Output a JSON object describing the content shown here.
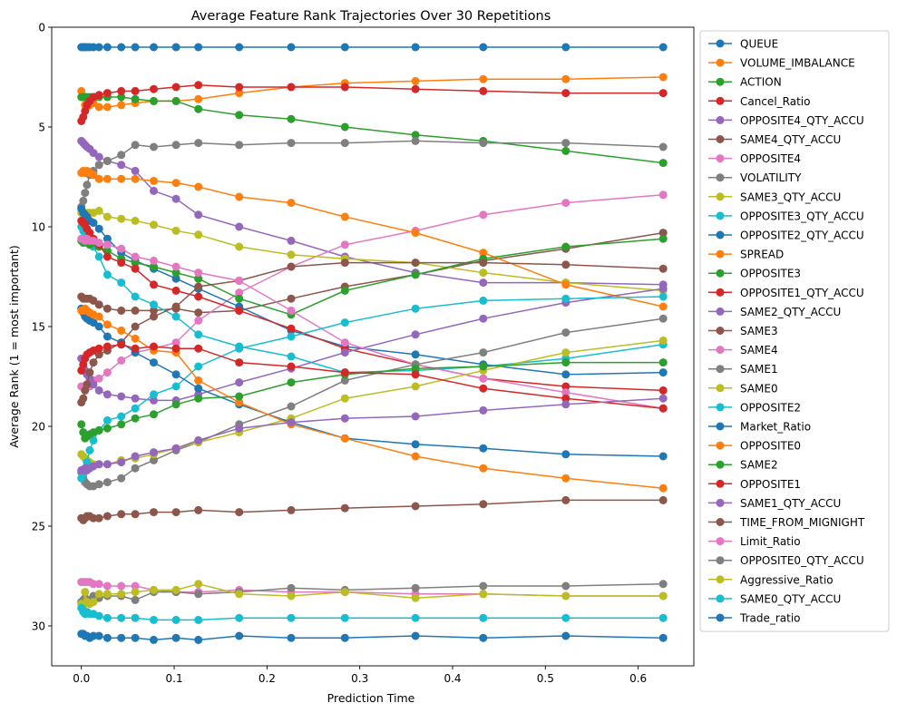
{
  "chart_data": {
    "type": "line",
    "title": "Average Feature Rank Trajectories Over 30 Repetitions",
    "xlabel": "Prediction Time",
    "ylabel": "Average Rank (1 = most important)",
    "xlim": [
      -0.032,
      0.66
    ],
    "ylim": [
      0,
      32
    ],
    "y_inverted": true,
    "xticks": [
      0.0,
      0.1,
      0.2,
      0.3,
      0.4,
      0.5,
      0.6
    ],
    "xtick_labels": [
      "0.0",
      "0.1",
      "0.2",
      "0.3",
      "0.4",
      "0.5",
      "0.6"
    ],
    "yticks": [
      0,
      5,
      10,
      15,
      20,
      25,
      30
    ],
    "ytick_labels": [
      "0",
      "5",
      "10",
      "15",
      "20",
      "25",
      "30"
    ],
    "legend_position": "outside-right",
    "x": [
      0.0,
      0.002,
      0.004,
      0.006,
      0.009,
      0.013,
      0.019,
      0.028,
      0.043,
      0.058,
      0.078,
      0.102,
      0.126,
      0.17,
      0.226,
      0.284,
      0.36,
      0.433,
      0.522,
      0.627
    ],
    "series": [
      {
        "name": "QUEUE",
        "color": "#1f77b4",
        "values": [
          1,
          1,
          1,
          1,
          1,
          1,
          1,
          1,
          1,
          1,
          1,
          1,
          1,
          1,
          1,
          1,
          1,
          1,
          1,
          1
        ]
      },
      {
        "name": "VOLUME_IMBALANCE",
        "color": "#ff7f0e",
        "values": [
          3.2,
          3.5,
          3.9,
          4.0,
          3.9,
          3.8,
          4.0,
          4.0,
          3.9,
          3.8,
          3.7,
          3.7,
          3.6,
          3.3,
          3.0,
          2.8,
          2.7,
          2.6,
          2.6,
          2.5
        ]
      },
      {
        "name": "ACTION",
        "color": "#2ca02c",
        "values": [
          3.5,
          3.5,
          3.5,
          3.5,
          3.5,
          3.5,
          3.5,
          3.5,
          3.5,
          3.6,
          3.7,
          3.7,
          4.1,
          4.4,
          4.6,
          5.0,
          5.4,
          5.7,
          6.2,
          6.8
        ]
      },
      {
        "name": "Cancel_Ratio",
        "color": "#d62728",
        "values": [
          4.7,
          4.5,
          4.2,
          3.9,
          3.7,
          3.5,
          3.4,
          3.3,
          3.2,
          3.2,
          3.1,
          3.0,
          2.9,
          3.0,
          3.0,
          3.0,
          3.1,
          3.2,
          3.3,
          3.3
        ]
      },
      {
        "name": "OPPOSITE4_QTY_ACCU",
        "color": "#9467bd",
        "values": [
          5.7,
          5.8,
          5.9,
          6.0,
          6.1,
          6.3,
          6.5,
          6.7,
          6.9,
          7.2,
          8.2,
          8.6,
          9.4,
          10.0,
          10.7,
          11.5,
          12.3,
          12.8,
          12.8,
          12.9
        ]
      },
      {
        "name": "SAME4_QTY_ACCU",
        "color": "#8c564b",
        "values": [
          13.5,
          13.6,
          13.6,
          13.6,
          13.6,
          13.7,
          13.9,
          14.1,
          14.2,
          14.2,
          14.2,
          14.1,
          14.3,
          14.2,
          13.6,
          13.0,
          12.4,
          11.7,
          11.1,
          10.3
        ]
      },
      {
        "name": "OPPOSITE4",
        "color": "#e377c2",
        "values": [
          18.0,
          18.0,
          18.0,
          17.9,
          18.0,
          17.7,
          17.6,
          17.3,
          16.7,
          16.3,
          16.1,
          15.8,
          14.7,
          13.3,
          12.0,
          10.9,
          10.2,
          9.4,
          8.8,
          8.4
        ]
      },
      {
        "name": "VOLATILITY",
        "color": "#7f7f7f",
        "values": [
          9.0,
          8.7,
          8.3,
          7.9,
          7.4,
          7.2,
          6.9,
          6.7,
          6.4,
          5.9,
          6.0,
          5.9,
          5.8,
          5.9,
          5.8,
          5.8,
          5.7,
          5.8,
          5.8,
          6.0
        ]
      },
      {
        "name": "SAME3_QTY_ACCU",
        "color": "#bcbd22",
        "values": [
          9.3,
          9.3,
          9.3,
          9.3,
          9.3,
          9.3,
          9.2,
          9.5,
          9.6,
          9.7,
          9.9,
          10.2,
          10.4,
          11.0,
          11.4,
          11.6,
          11.8,
          12.3,
          12.8,
          13.2
        ]
      },
      {
        "name": "OPPOSITE3_QTY_ACCU",
        "color": "#17becf",
        "values": [
          10.0,
          10.2,
          10.4,
          10.6,
          10.8,
          11.0,
          11.5,
          12.4,
          12.8,
          13.5,
          13.9,
          14.5,
          15.4,
          16.0,
          16.5,
          17.3,
          17.2,
          17.0,
          16.6,
          15.9
        ]
      },
      {
        "name": "OPPOSITE2_QTY_ACCU",
        "color": "#1f77b4",
        "values": [
          9.1,
          9.3,
          9.4,
          9.5,
          9.7,
          9.8,
          10.1,
          10.6,
          11.3,
          11.7,
          12.1,
          12.6,
          13.1,
          14.0,
          15.2,
          16.0,
          16.4,
          16.9,
          17.4,
          17.3
        ]
      },
      {
        "name": "SPREAD",
        "color": "#ff7f0e",
        "values": [
          7.3,
          7.2,
          7.3,
          7.2,
          7.3,
          7.4,
          7.6,
          7.6,
          7.6,
          7.6,
          7.7,
          7.8,
          8.0,
          8.5,
          8.8,
          9.5,
          10.3,
          11.3,
          12.9,
          14.0
        ]
      },
      {
        "name": "OPPOSITE3",
        "color": "#2ca02c",
        "values": [
          10.7,
          10.8,
          10.7,
          10.8,
          10.9,
          10.8,
          11.0,
          11.2,
          11.6,
          11.8,
          12.0,
          12.3,
          12.6,
          13.6,
          14.4,
          13.2,
          12.4,
          11.6,
          11.0,
          10.6
        ]
      },
      {
        "name": "OPPOSITE1_QTY_ACCU",
        "color": "#d62728",
        "values": [
          9.7,
          9.8,
          9.9,
          10.1,
          10.3,
          10.6,
          10.9,
          11.5,
          11.8,
          12.1,
          12.9,
          13.2,
          13.5,
          14.2,
          15.1,
          16.1,
          16.9,
          17.6,
          18.0,
          18.2
        ]
      },
      {
        "name": "SAME2_QTY_ACCU",
        "color": "#9467bd",
        "values": [
          16.6,
          17.0,
          17.2,
          17.4,
          17.6,
          17.9,
          18.2,
          18.4,
          18.5,
          18.6,
          18.7,
          18.7,
          18.4,
          17.8,
          17.1,
          16.3,
          15.4,
          14.6,
          13.8,
          13.1
        ]
      },
      {
        "name": "SAME3",
        "color": "#8c564b",
        "values": [
          18.8,
          18.6,
          18.2,
          17.9,
          17.3,
          16.8,
          16.4,
          16.2,
          15.8,
          15.0,
          14.5,
          14.0,
          13.0,
          12.7,
          12.0,
          11.8,
          11.8,
          11.8,
          11.9,
          12.1
        ]
      },
      {
        "name": "SAME4",
        "color": "#e377c2",
        "values": [
          10.6,
          10.6,
          10.7,
          10.6,
          10.7,
          10.7,
          10.8,
          10.9,
          11.1,
          11.5,
          11.7,
          12.0,
          12.3,
          12.7,
          14.2,
          15.8,
          16.9,
          17.6,
          18.3,
          19.1
        ]
      },
      {
        "name": "SAME1",
        "color": "#7f7f7f",
        "values": [
          22.3,
          22.6,
          22.8,
          22.9,
          23.0,
          23.0,
          22.9,
          22.8,
          22.6,
          22.1,
          21.7,
          21.2,
          20.8,
          19.9,
          19.0,
          17.7,
          16.9,
          16.3,
          15.3,
          14.6
        ]
      },
      {
        "name": "SAME0",
        "color": "#bcbd22",
        "values": [
          21.4,
          21.5,
          21.6,
          21.7,
          21.8,
          21.9,
          21.9,
          21.9,
          21.7,
          21.6,
          21.4,
          21.1,
          20.8,
          20.3,
          19.6,
          18.6,
          18.0,
          17.2,
          16.3,
          15.7
        ]
      },
      {
        "name": "OPPOSITE2",
        "color": "#17becf",
        "values": [
          22.6,
          22.4,
          22.2,
          21.8,
          21.2,
          20.7,
          20.2,
          19.7,
          19.5,
          19.1,
          18.4,
          18.0,
          17.0,
          16.1,
          15.5,
          14.8,
          14.1,
          13.7,
          13.6,
          13.5
        ]
      },
      {
        "name": "Market_Ratio",
        "color": "#1f77b4",
        "values": [
          14.1,
          14.3,
          14.5,
          14.6,
          14.7,
          14.8,
          15.0,
          15.5,
          15.8,
          16.3,
          16.8,
          17.4,
          18.1,
          18.9,
          19.8,
          20.6,
          20.9,
          21.1,
          21.4,
          21.5
        ]
      },
      {
        "name": "OPPOSITE0",
        "color": "#ff7f0e",
        "values": [
          14.2,
          14.2,
          14.1,
          14.2,
          14.3,
          14.4,
          14.5,
          14.9,
          15.2,
          15.6,
          16.2,
          16.3,
          17.7,
          18.8,
          19.9,
          20.6,
          21.5,
          22.1,
          22.6,
          23.1
        ]
      },
      {
        "name": "SAME2",
        "color": "#2ca02c",
        "values": [
          19.9,
          20.3,
          20.6,
          20.5,
          20.4,
          20.3,
          20.2,
          20.1,
          19.9,
          19.6,
          19.4,
          18.9,
          18.6,
          18.5,
          17.8,
          17.4,
          17.1,
          17.0,
          16.8,
          16.8
        ]
      },
      {
        "name": "OPPOSITE1",
        "color": "#d62728",
        "values": [
          17.2,
          16.9,
          16.6,
          16.4,
          16.3,
          16.2,
          16.1,
          16.0,
          15.9,
          16.1,
          16.0,
          16.1,
          16.1,
          16.8,
          17.0,
          17.3,
          17.4,
          18.1,
          18.6,
          19.1
        ]
      },
      {
        "name": "SAME1_QTY_ACCU",
        "color": "#9467bd",
        "values": [
          22.2,
          22.2,
          22.1,
          22.2,
          22.1,
          22.0,
          21.9,
          21.9,
          21.8,
          21.5,
          21.3,
          21.1,
          20.7,
          20.1,
          19.8,
          19.6,
          19.5,
          19.2,
          18.9,
          18.6
        ]
      },
      {
        "name": "TIME_FROM_MIGNIGHT",
        "color": "#8c564b",
        "values": [
          24.6,
          24.7,
          24.6,
          24.5,
          24.5,
          24.6,
          24.6,
          24.5,
          24.4,
          24.4,
          24.3,
          24.3,
          24.2,
          24.3,
          24.2,
          24.1,
          24.0,
          23.9,
          23.7,
          23.7
        ]
      },
      {
        "name": "Limit_Ratio",
        "color": "#e377c2",
        "values": [
          27.8,
          27.8,
          27.8,
          27.8,
          27.8,
          27.9,
          27.9,
          28.0,
          28.0,
          28.0,
          28.2,
          28.3,
          28.3,
          28.2,
          28.3,
          28.3,
          28.4,
          28.4,
          28.5,
          28.5
        ]
      },
      {
        "name": "OPPOSITE0_QTY_ACCU",
        "color": "#7f7f7f",
        "values": [
          28.8,
          28.7,
          28.6,
          28.8,
          28.7,
          28.5,
          28.6,
          28.5,
          28.5,
          28.7,
          28.3,
          28.3,
          28.4,
          28.3,
          28.1,
          28.2,
          28.1,
          28.0,
          28.0,
          27.9
        ]
      },
      {
        "name": "Aggressive_Ratio",
        "color": "#bcbd22",
        "values": [
          28.9,
          29.0,
          28.3,
          28.8,
          28.9,
          28.8,
          28.4,
          28.4,
          28.4,
          28.3,
          28.2,
          28.2,
          27.9,
          28.4,
          28.5,
          28.3,
          28.6,
          28.4,
          28.5,
          28.5
        ]
      },
      {
        "name": "SAME0_QTY_ACCU",
        "color": "#17becf",
        "values": [
          29.1,
          29.3,
          29.4,
          29.3,
          29.4,
          29.4,
          29.5,
          29.6,
          29.6,
          29.6,
          29.7,
          29.7,
          29.7,
          29.6,
          29.6,
          29.6,
          29.6,
          29.6,
          29.6,
          29.6
        ]
      },
      {
        "name": "Trade_ratio",
        "color": "#1f77b4",
        "values": [
          30.4,
          30.4,
          30.5,
          30.5,
          30.6,
          30.5,
          30.5,
          30.6,
          30.6,
          30.6,
          30.7,
          30.6,
          30.7,
          30.5,
          30.6,
          30.6,
          30.5,
          30.6,
          30.5,
          30.6
        ]
      }
    ]
  }
}
